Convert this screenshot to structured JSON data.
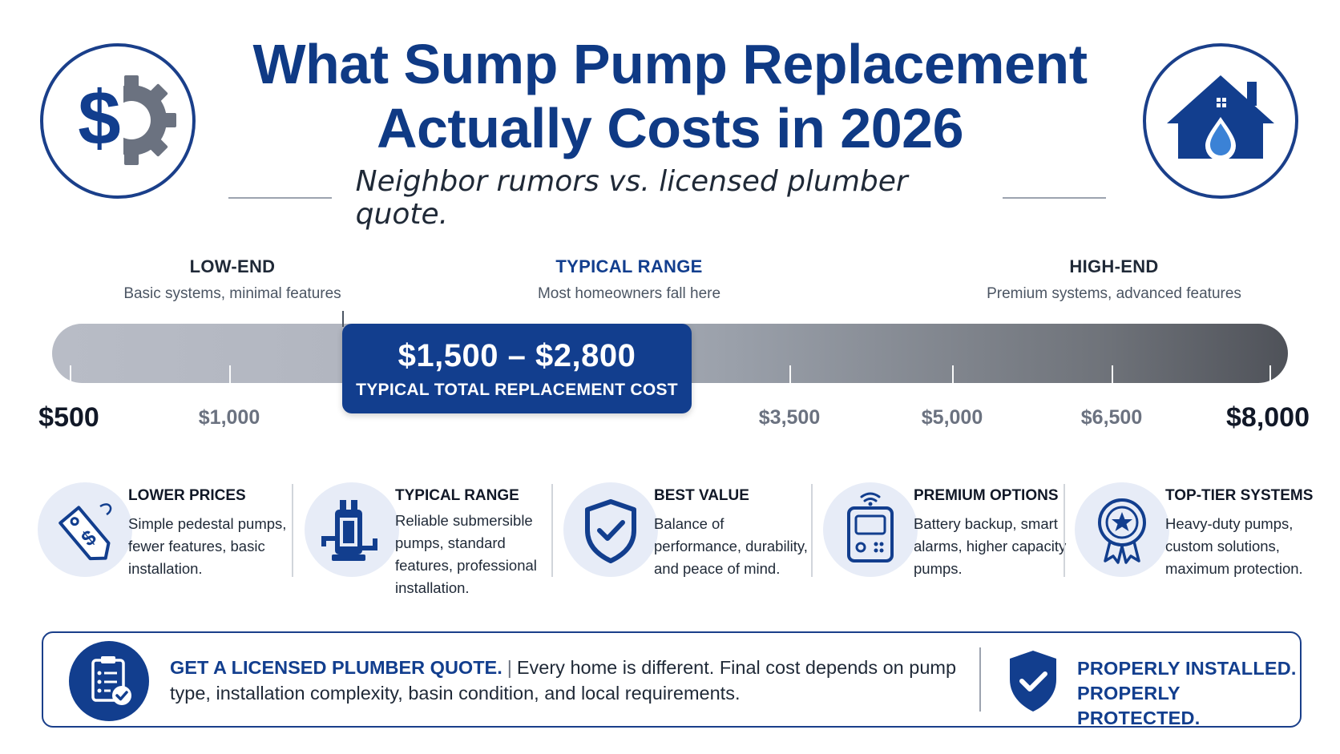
{
  "header": {
    "title_line1": "What Sump Pump Replacement",
    "title_line2": "Actually Costs in 2026",
    "subtitle": "Neighbor rumors vs. licensed plumber quote."
  },
  "icons": {
    "left": "dollar-gear-icon",
    "right": "house-water-drop-icon"
  },
  "ranges": {
    "low": {
      "heading": "LOW-END",
      "sub": "Basic systems, minimal features"
    },
    "typical": {
      "heading": "TYPICAL RANGE",
      "sub": "Most homeowners fall here"
    },
    "high": {
      "heading": "HIGH-END",
      "sub": "Premium systems, advanced features"
    }
  },
  "scale": {
    "min": 500,
    "max": 8000,
    "labels": [
      "$500",
      "$1,000",
      "$3,500",
      "$5,000",
      "$6,500",
      "$8,000"
    ],
    "highlight": {
      "amount": "$1,500 – $2,800",
      "label": "TYPICAL TOTAL REPLACEMENT COST",
      "from": 1500,
      "to": 2800
    }
  },
  "features": [
    {
      "icon": "price-tag-icon",
      "title": "LOWER PRICES",
      "desc": "Simple pedestal pumps, fewer features, basic installation."
    },
    {
      "icon": "submersible-pump-icon",
      "title": "TYPICAL RANGE",
      "desc": "Reliable submersible pumps, standard features, professional installation."
    },
    {
      "icon": "shield-check-icon",
      "title": "BEST VALUE",
      "desc": "Balance of performance, durability, and peace of mind."
    },
    {
      "icon": "smart-device-icon",
      "title": "PREMIUM OPTIONS",
      "desc": "Battery backup, smart alarms, higher capacity pumps."
    },
    {
      "icon": "award-badge-icon",
      "title": "TOP-TIER SYSTEMS",
      "desc": "Heavy-duty pumps, custom solutions, maximum protection."
    }
  ],
  "cta": {
    "icon": "clipboard-check-icon",
    "strong": "GET A LICENSED PLUMBER QUOTE.",
    "separator": "|",
    "body": "Every home is different. Final cost depends on pump type, installation complexity, basin condition, and local requirements.",
    "right_icon": "shield-check-icon",
    "right_line1": "PROPERLY INSTALLED.",
    "right_line2": "PROPERLY PROTECTED."
  },
  "colors": {
    "brand": "#123e8e",
    "accent_light": "#e7ecf7",
    "scale_dark": "#4f5259",
    "scale_light": "#b8bcc6"
  }
}
